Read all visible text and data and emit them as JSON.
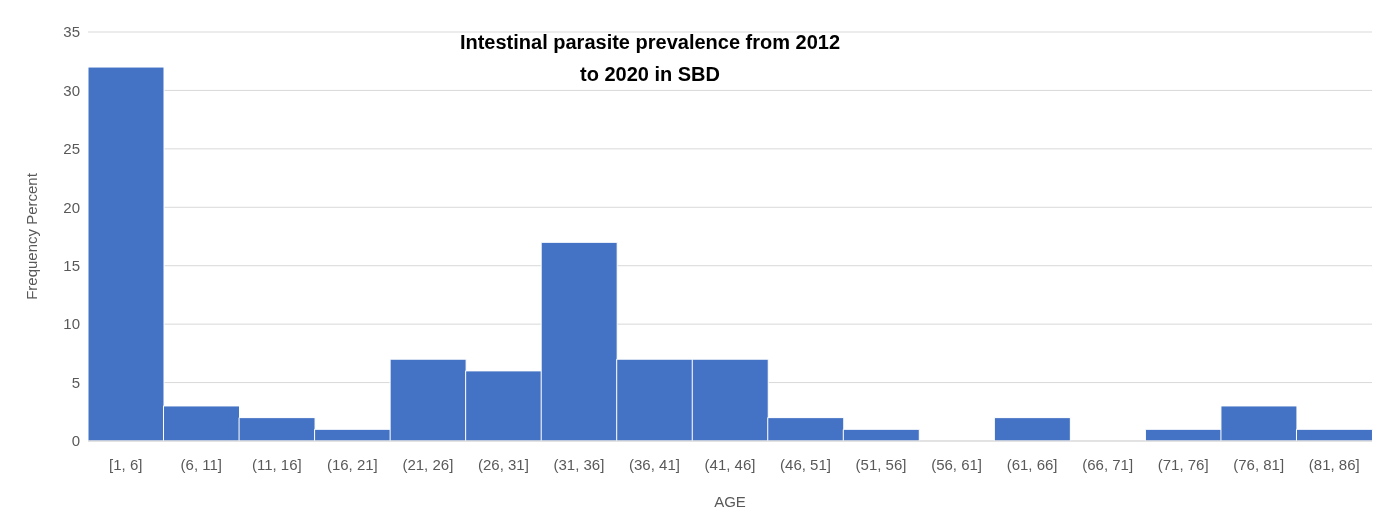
{
  "chart_data": {
    "type": "bar",
    "title": "Intestinal parasite prevalence from 2012 to 2020 in SBD",
    "xlabel": "AGE",
    "ylabel": "Frequency Percent",
    "categories": [
      "[1, 6]",
      "(6, 11]",
      "(11, 16]",
      "(16, 21]",
      "(21, 26]",
      "(26, 31]",
      "(31, 36]",
      "(36, 41]",
      "(41, 46]",
      "(46, 51]",
      "(51, 56]",
      "(56, 61]",
      "(61, 66]",
      "(66, 71]",
      "(71, 76]",
      "(76, 81]",
      "(81, 86]"
    ],
    "values": [
      32,
      3,
      2,
      1,
      7,
      6,
      17,
      7,
      7,
      2,
      1,
      0,
      2,
      0,
      1,
      3,
      1
    ],
    "color": "#4472c4",
    "ylim": [
      0,
      35
    ],
    "yticks": [
      0,
      5,
      10,
      15,
      20,
      25,
      30,
      35
    ],
    "grid": "y"
  }
}
